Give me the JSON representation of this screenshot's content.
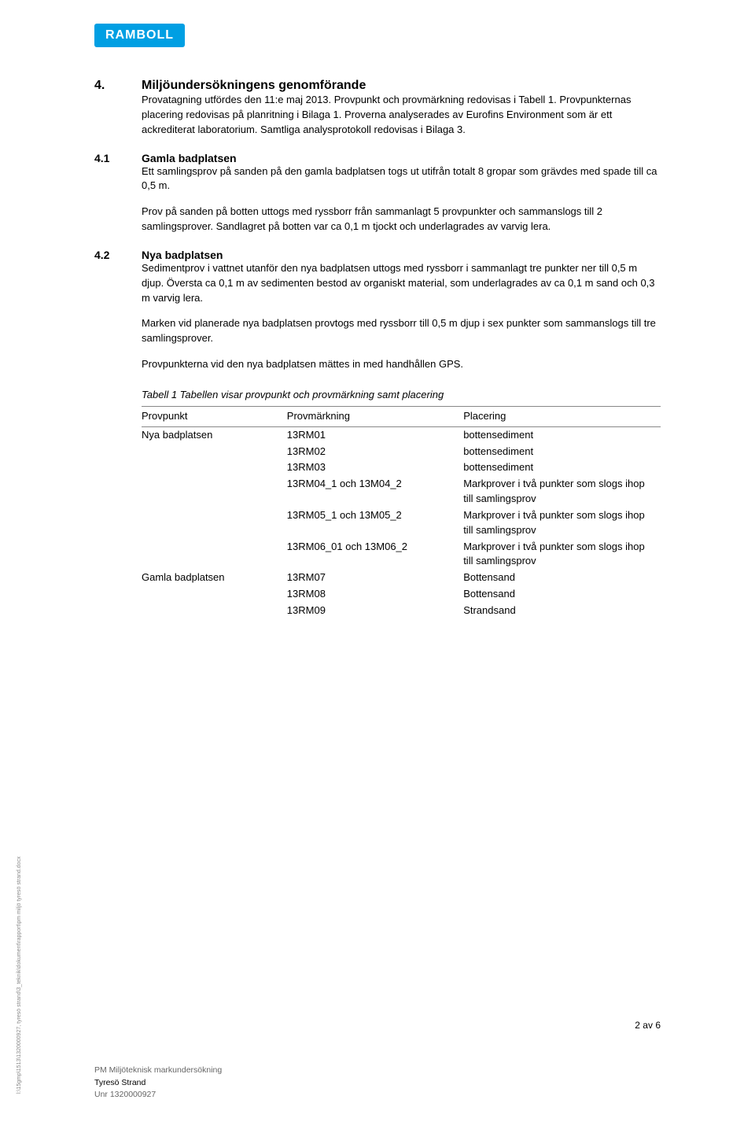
{
  "logo_text": "RAMBOLL",
  "section4": {
    "number": "4.",
    "title": "Miljöundersökningens genomförande",
    "intro": "Provatagning utfördes den 11:e maj 2013. Provpunkt och provmärkning redovisas i Tabell 1. Provpunkternas placering redovisas på planritning i Bilaga 1. Proverna analyserades av Eurofins Environment som är ett ackrediterat laboratorium. Samtliga analysprotokoll redovisas i Bilaga 3."
  },
  "section41": {
    "number": "4.1",
    "title": "Gamla badplatsen",
    "p1": "Ett samlingsprov på sanden på den gamla badplatsen togs ut utifrån totalt 8 gropar som grävdes med spade till ca 0,5 m.",
    "p2": "Prov på sanden på botten uttogs med ryssborr från sammanlagt 5 provpunkter och sammanslogs till 2 samlingsprover. Sandlagret på botten var ca 0,1 m tjockt och underlagrades av varvig lera."
  },
  "section42": {
    "number": "4.2",
    "title": "Nya badplatsen",
    "p1": "Sedimentprov i vattnet utanför den nya badplatsen uttogs med ryssborr i sammanlagt tre punkter ner till 0,5 m djup. Översta ca 0,1 m av sedimenten bestod av organiskt material, som underlagrades av ca 0,1 m sand och 0,3 m varvig lera.",
    "p2": "Marken vid planerade nya badplatsen provtogs med ryssborr till 0,5 m djup i sex punkter som sammanslogs till tre samlingsprover.",
    "p3": "Provpunkterna vid den nya badplatsen mättes in med handhållen GPS."
  },
  "table": {
    "caption": "Tabell 1 Tabellen visar provpunkt och provmärkning samt placering",
    "headers": [
      "Provpunkt",
      "Provmärkning",
      "Placering"
    ],
    "rows": [
      [
        "Nya badplatsen",
        "13RM01",
        "bottensediment"
      ],
      [
        "",
        "13RM02",
        "bottensediment"
      ],
      [
        "",
        "13RM03",
        "bottensediment"
      ],
      [
        "",
        "13RM04_1 och 13M04_2",
        "Markprover i två punkter som slogs ihop till samlingsprov"
      ],
      [
        "",
        "13RM05_1 och 13M05_2",
        "Markprover i två punkter som slogs ihop till samlingsprov"
      ],
      [
        "",
        "13RM06_01 och 13M06_2",
        "Markprover i två punkter som slogs ihop till samlingsprov"
      ],
      [
        "Gamla badplatsen",
        "13RM07",
        "Bottensand"
      ],
      [
        "",
        "13RM08",
        "Bottensand"
      ],
      [
        "",
        "13RM09",
        "Strandsand"
      ]
    ]
  },
  "page_number": "2 av 6",
  "footer": {
    "line1": "PM Miljöteknisk markundersökning",
    "line2": "Tyresö Strand",
    "line3": "Unr 1320000927"
  },
  "side_path": "l:\\15gmp\\1513\\1320000927, tyresö strand\\3_teknik\\dokument\\rapport\\pm miljö tyresö strand.docx",
  "colors": {
    "logo_bg": "#009fe3",
    "text": "#000000",
    "border": "#888888",
    "footer_light": "#666666"
  },
  "typography": {
    "body_fontsize": 13,
    "heading_fontsize": 16,
    "subheading_fontsize": 14,
    "footer_fontsize": 10.5,
    "sidepath_fontsize": 7
  }
}
